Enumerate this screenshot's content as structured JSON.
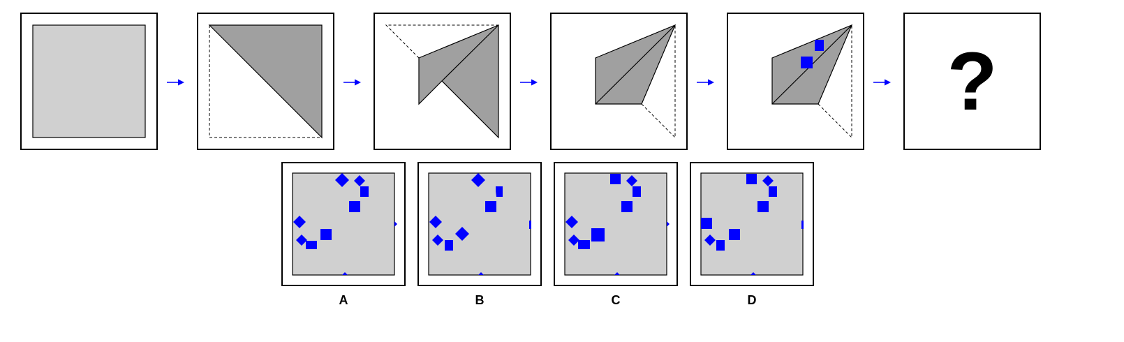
{
  "puzzle": {
    "question_mark": "?",
    "colors": {
      "paper": "#d0d0d0",
      "folded": "#a0a0a0",
      "hole": "#0000ff",
      "arrow": "#0000ff",
      "outline": "#000000"
    },
    "steps": [
      {
        "name": "unfolded-square"
      },
      {
        "name": "fold-diagonal"
      },
      {
        "name": "fold-corner-up"
      },
      {
        "name": "fold-bottom-corner"
      },
      {
        "name": "punch-holes"
      },
      {
        "name": "unknown-result"
      }
    ],
    "options": [
      {
        "label": "A"
      },
      {
        "label": "B"
      },
      {
        "label": "C"
      },
      {
        "label": "D"
      }
    ]
  }
}
